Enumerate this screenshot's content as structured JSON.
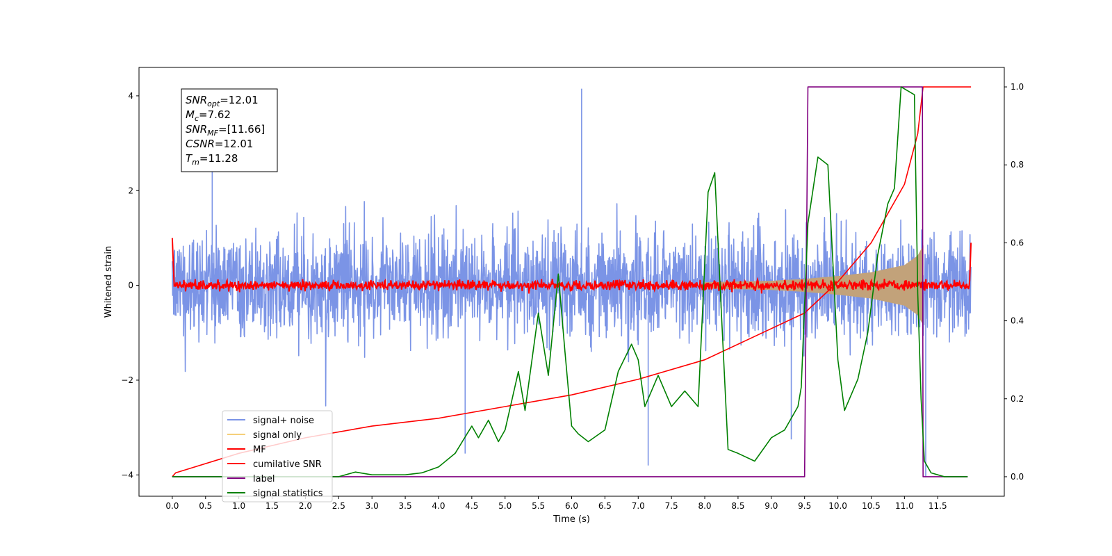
{
  "chart_data": {
    "type": "line",
    "xlabel": "Time (s)",
    "ylabel_left": "Whitened strain",
    "xlim": [
      -0.5,
      12.5
    ],
    "ylim_left": [
      -4.45,
      4.6
    ],
    "ylim_right": [
      -0.05,
      1.05
    ],
    "xticks": [
      "0.0",
      "0.5",
      "1.0",
      "1.5",
      "2.0",
      "2.5",
      "3.0",
      "3.5",
      "4.0",
      "4.5",
      "5.0",
      "5.5",
      "6.0",
      "6.5",
      "7.0",
      "7.5",
      "8.0",
      "8.5",
      "9.0",
      "9.5",
      "10.0",
      "10.5",
      "11.0",
      "11.5"
    ],
    "yticks_left": [
      "4",
      "2",
      "0",
      "−2",
      "−4"
    ],
    "yticks_right": [
      "1.0",
      "0.8",
      "0.6",
      "0.4",
      "0.2",
      "0.0"
    ],
    "annotation": {
      "lines": [
        {
          "main": "SNR",
          "sub": "opt",
          "rest": "=12.01"
        },
        {
          "main": "M",
          "sub": "c",
          "rest": "=7.62"
        },
        {
          "main": "SNR",
          "sub": "MF",
          "rest": "=[11.66]"
        },
        {
          "main": "CSNR",
          "sub": "",
          "rest": "=12.01"
        },
        {
          "main": "T",
          "sub": "m",
          "rest": "=11.28"
        }
      ]
    },
    "legend": {
      "placement": "lower-left",
      "entries": [
        {
          "label": "signal+ noise",
          "color": "#7b94e6"
        },
        {
          "label": "signal only",
          "color": "#f5cf7a"
        },
        {
          "label": "MF",
          "color": "#ff0000"
        },
        {
          "label": "cumilative SNR",
          "color": "#ff0000"
        },
        {
          "label": "label",
          "color": "#800080"
        },
        {
          "label": "signal statistics",
          "color": "#008000"
        }
      ]
    },
    "series": [
      {
        "name": "signal+ noise",
        "axis": "left",
        "color": "#7b94e6",
        "x_range": [
          0.0,
          12.0
        ],
        "envelope_approx": {
          "typical_abs_max": 2.6,
          "peak_max": 4.15,
          "peak_min": -4.05
        }
      },
      {
        "name": "signal only",
        "axis": "left",
        "color": "#f5cf7a",
        "chirp_amplitude_x": [
          8.0,
          9.0,
          9.5,
          10.0,
          10.5,
          11.0,
          11.2,
          11.28
        ],
        "chirp_amplitude": [
          0.06,
          0.09,
          0.13,
          0.19,
          0.27,
          0.42,
          0.62,
          0.82
        ]
      },
      {
        "name": "MF",
        "axis": "left",
        "color": "#ff0000",
        "x_range": [
          0.0,
          12.0
        ],
        "typical_abs_max": 0.2,
        "edge_value": 1.0
      },
      {
        "name": "cumilative SNR",
        "axis": "right",
        "color": "#ff0000",
        "x": [
          0.0,
          0.05,
          1.0,
          2.0,
          3.0,
          4.0,
          5.0,
          6.0,
          7.0,
          8.0,
          9.0,
          9.5,
          10.0,
          10.5,
          11.0,
          11.2,
          11.28,
          11.3,
          12.0
        ],
        "values": [
          0.0,
          0.01,
          0.06,
          0.1,
          0.13,
          0.15,
          0.18,
          0.21,
          0.25,
          0.3,
          0.38,
          0.42,
          0.5,
          0.6,
          0.75,
          0.88,
          1.0,
          1.0,
          1.0
        ]
      },
      {
        "name": "label",
        "axis": "right",
        "color": "#800080",
        "x": [
          0.0,
          9.5,
          9.55,
          11.27,
          11.28,
          11.95
        ],
        "values": [
          0.0,
          0.0,
          1.0,
          1.0,
          0.0,
          0.0
        ]
      },
      {
        "name": "signal statistics",
        "axis": "right",
        "color": "#008000",
        "x": [
          0.0,
          0.5,
          1.0,
          1.5,
          2.0,
          2.5,
          2.75,
          3.0,
          3.5,
          3.75,
          4.0,
          4.25,
          4.5,
          4.6,
          4.75,
          4.9,
          5.0,
          5.2,
          5.3,
          5.5,
          5.65,
          5.8,
          5.9,
          6.0,
          6.1,
          6.25,
          6.5,
          6.7,
          6.9,
          7.0,
          7.1,
          7.3,
          7.5,
          7.7,
          7.9,
          8.05,
          8.15,
          8.25,
          8.35,
          8.5,
          8.75,
          9.0,
          9.2,
          9.4,
          9.45,
          9.55,
          9.7,
          9.85,
          10.0,
          10.1,
          10.3,
          10.45,
          10.6,
          10.75,
          10.85,
          10.95,
          11.05,
          11.15,
          11.2,
          11.25,
          11.3,
          11.4,
          11.6,
          11.95
        ],
        "values": [
          0.0,
          0.0,
          0.0,
          0.0,
          0.0,
          0.0,
          0.012,
          0.005,
          0.005,
          0.01,
          0.025,
          0.06,
          0.13,
          0.1,
          0.145,
          0.09,
          0.12,
          0.27,
          0.17,
          0.42,
          0.26,
          0.52,
          0.32,
          0.13,
          0.11,
          0.09,
          0.12,
          0.27,
          0.34,
          0.3,
          0.18,
          0.26,
          0.18,
          0.22,
          0.18,
          0.73,
          0.78,
          0.42,
          0.07,
          0.06,
          0.04,
          0.1,
          0.12,
          0.18,
          0.23,
          0.65,
          0.82,
          0.8,
          0.3,
          0.17,
          0.25,
          0.37,
          0.57,
          0.7,
          0.74,
          1.0,
          0.99,
          0.98,
          0.47,
          0.2,
          0.04,
          0.01,
          0.0,
          0.0
        ]
      }
    ]
  }
}
